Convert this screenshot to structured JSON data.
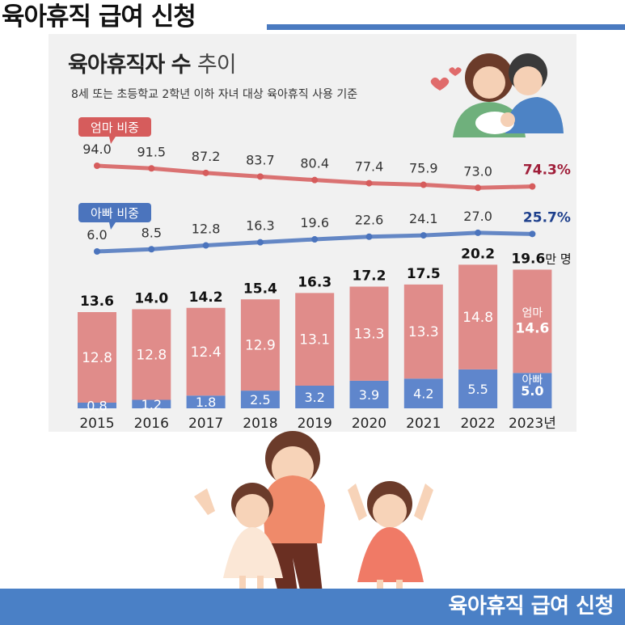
{
  "header": {
    "title": "육아휴직 급여 신청"
  },
  "footer": {
    "title": "육아휴직 급여 신청"
  },
  "colors": {
    "mom": "#d65c5c",
    "dad": "#4b74bd",
    "bar_mom": "#e08c8a",
    "bar_dad": "#5f86cc",
    "accent_blue": "#4a80c6"
  },
  "chart_data": {
    "type": "bar",
    "title": "육아휴직자 수",
    "title_suffix": "추이",
    "subtitle": "8세 또는 초등학교 2학년 이하 자녀 대상 육아휴직 사용 기준",
    "categories": [
      "2015",
      "2016",
      "2017",
      "2018",
      "2019",
      "2020",
      "2021",
      "2022",
      "2023년"
    ],
    "stacked": true,
    "series": [
      {
        "name": "아빠",
        "values": [
          0.8,
          1.2,
          1.8,
          2.5,
          3.2,
          3.9,
          4.2,
          5.5,
          5.0
        ],
        "labels": [
          "0.8",
          "1.2",
          "1.8",
          "2.5",
          "3.2",
          "3.9",
          "4.2",
          "5.5",
          "5.0"
        ]
      },
      {
        "name": "엄마",
        "values": [
          12.8,
          12.8,
          12.4,
          12.9,
          13.1,
          13.3,
          13.3,
          14.8,
          14.6
        ],
        "labels": [
          "12.8",
          "12.8",
          "12.4",
          "12.9",
          "13.1",
          "13.3",
          "13.3",
          "14.8",
          "14.6"
        ]
      }
    ],
    "totals": [
      "13.6",
      "14.0",
      "14.2",
      "15.4",
      "16.3",
      "17.2",
      "17.5",
      "20.2",
      "19.6"
    ],
    "total_unit": "만 명",
    "lines": [
      {
        "name": "엄마 비중",
        "values": [
          94.0,
          91.5,
          87.2,
          83.7,
          80.4,
          77.4,
          75.9,
          73.0,
          74.3
        ],
        "labels": [
          "94.0",
          "91.5",
          "87.2",
          "83.7",
          "80.4",
          "77.4",
          "75.9",
          "73.0",
          "74.3%"
        ]
      },
      {
        "name": "아빠 비중",
        "values": [
          6.0,
          8.5,
          12.8,
          16.3,
          19.6,
          22.6,
          24.1,
          27.0,
          25.7
        ],
        "labels": [
          "6.0",
          "8.5",
          "12.8",
          "16.3",
          "19.6",
          "22.6",
          "24.1",
          "27.0",
          "25.7%"
        ]
      }
    ],
    "last_bar_labels": {
      "mom": "엄마",
      "dad": "아빠"
    }
  },
  "illustrations": {
    "top": "parents-with-baby-illustration",
    "bottom": "mother-with-two-daughters-illustration"
  }
}
